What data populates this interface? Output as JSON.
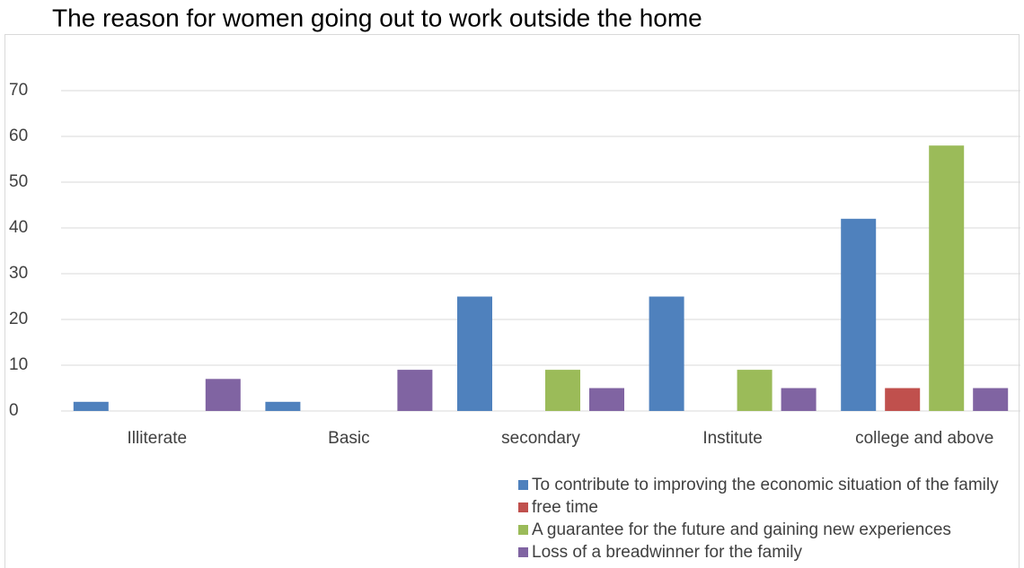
{
  "chart_data": {
    "type": "bar",
    "title": "The reason for women going out to work outside the home",
    "categories": [
      "Illiterate",
      "Basic",
      "secondary",
      "Institute",
      "college and above"
    ],
    "series": [
      {
        "name": "To contribute to improving the economic situation of the family",
        "color": "#4f81bd",
        "values": [
          2,
          2,
          25,
          25,
          42
        ]
      },
      {
        "name": "free time",
        "color": "#c0504d",
        "values": [
          0,
          0,
          0,
          0,
          5
        ]
      },
      {
        "name": "A guarantee for the future and gaining new experiences",
        "color": "#9bbb59",
        "values": [
          0,
          0,
          9,
          9,
          58
        ]
      },
      {
        "name": "Loss of a breadwinner for the family",
        "color": "#8064a2",
        "values": [
          7,
          9,
          5,
          5,
          5
        ]
      }
    ],
    "ylim": [
      0,
      70
    ],
    "yticks": [
      0,
      10,
      20,
      30,
      40,
      50,
      60,
      70
    ],
    "grid": true,
    "legend": "bottom"
  }
}
